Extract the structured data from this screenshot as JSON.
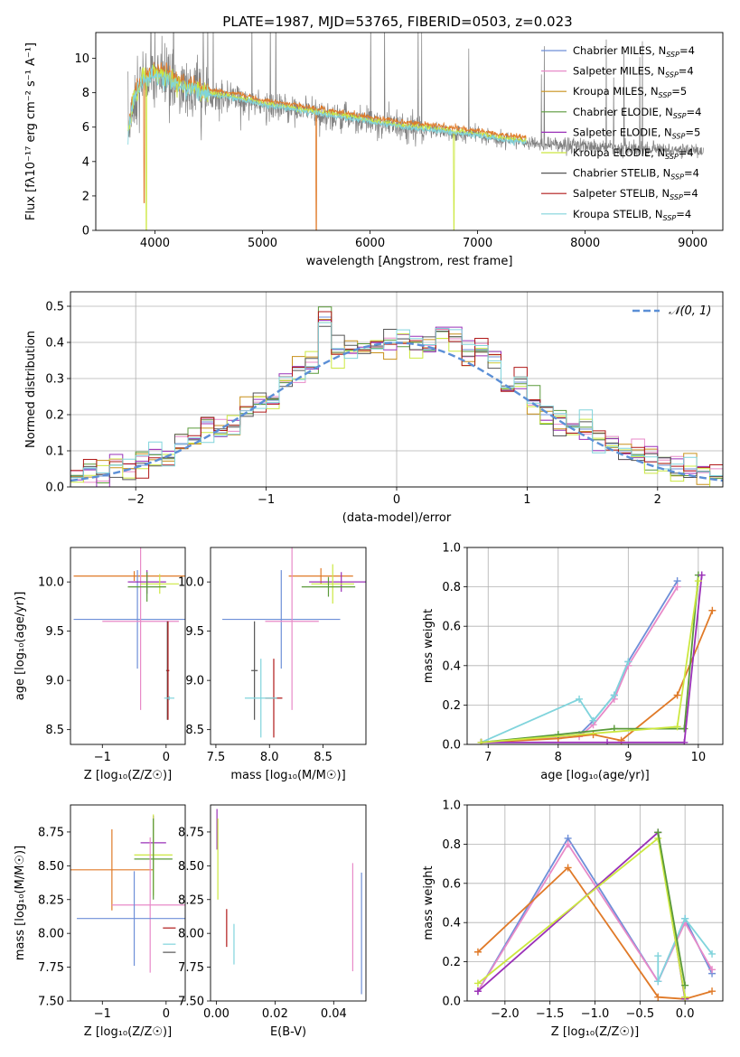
{
  "figure_title": "PLATE=1987, MJD=53765, FIBERID=0503, z=0.023",
  "colors": {
    "Chabrier MILES": "#6e8fd8",
    "Salpeter MILES": "#e88ac8",
    "Kroupa MILES": "#c8901a",
    "Chabrier ELODIE": "#5a9a3a",
    "Salpeter ELODIE": "#9a30b8",
    "Kroupa ELODIE": "#cce840",
    "Chabrier STELIB": "#555555",
    "Salpeter STELIB": "#b01818",
    "Kroupa STELIB": "#80d4dc",
    "orange": "#e07a28",
    "normal_curve": "#5b8fd6"
  },
  "chart_data": [
    {
      "type": "line",
      "title": "PLATE=1987, MJD=53765, FIBERID=0503, z=0.023",
      "xlabel": "wavelength [Angstrom, rest frame]",
      "ylabel": "Flux [fλ10⁻¹⁷ erg cm⁻² s⁻¹ A⁻¹]",
      "xlim": [
        3450,
        9280
      ],
      "ylim": [
        0,
        11.5
      ],
      "xticks": [
        4000,
        5000,
        6000,
        7000,
        8000,
        9000
      ],
      "yticks": [
        0,
        2,
        4,
        6,
        8,
        10
      ],
      "legend_position": "top-right",
      "legend": [
        {
          "name": "Chabrier MILES",
          "suffix": "=4"
        },
        {
          "name": "Salpeter MILES",
          "suffix": "=4"
        },
        {
          "name": "Kroupa MILES",
          "suffix": "=5"
        },
        {
          "name": "Chabrier ELODIE",
          "suffix": "=4"
        },
        {
          "name": "Salpeter ELODIE",
          "suffix": "=5"
        },
        {
          "name": "Kroupa ELODIE",
          "suffix": "=4"
        },
        {
          "name": "Chabrier STELIB",
          "suffix": "=4"
        },
        {
          "name": "Salpeter STELIB",
          "suffix": "=4"
        },
        {
          "name": "Kroupa STELIB",
          "suffix": "=4"
        }
      ],
      "spectrum_envelope": {
        "x": [
          3750,
          3800,
          3900,
          4000,
          4100,
          4200,
          4400,
          4600,
          4800,
          5000,
          5200,
          5500,
          5800,
          6000,
          6300,
          6600,
          7000,
          7300,
          7600,
          8000,
          8400,
          8800,
          9100
        ],
        "y": [
          5.5,
          7.5,
          8.8,
          9.0,
          8.9,
          8.4,
          8.0,
          7.8,
          7.6,
          7.3,
          7.1,
          6.8,
          6.5,
          6.3,
          6.0,
          5.8,
          5.5,
          5.2,
          5.0,
          4.9,
          4.8,
          4.7,
          4.6
        ]
      },
      "noisy_spectrum_x_range": [
        3750,
        9100
      ],
      "model_x_range": [
        3750,
        7450
      ]
    },
    {
      "type": "line",
      "xlabel": "(data-model)/error",
      "ylabel": "Normed distribution",
      "xlim": [
        -2.5,
        2.5
      ],
      "ylim": [
        0,
        0.54
      ],
      "xticks": [
        -2,
        -1,
        0,
        1,
        2
      ],
      "yticks": [
        0.0,
        0.1,
        0.2,
        0.3,
        0.4,
        0.5
      ],
      "legend": [
        {
          "name": "𝒩(0, 1)"
        }
      ],
      "legend_position": "top-right",
      "bin_width": 0.1,
      "reference_series": {
        "x": [
          -2.45,
          -2.35,
          -2.25,
          -2.15,
          -2.05,
          -1.95,
          -1.85,
          -1.75,
          -1.65,
          -1.55,
          -1.45,
          -1.35,
          -1.25,
          -1.15,
          -1.05,
          -0.95,
          -0.85,
          -0.75,
          -0.65,
          -0.55,
          -0.45,
          -0.35,
          -0.25,
          -0.15,
          -0.05,
          0.05,
          0.15,
          0.25,
          0.35,
          0.45,
          0.55,
          0.65,
          0.75,
          0.85,
          0.95,
          1.05,
          1.15,
          1.25,
          1.35,
          1.45,
          1.55,
          1.65,
          1.75,
          1.85,
          1.95,
          2.05,
          2.15,
          2.25,
          2.35,
          2.45
        ],
        "y": [
          0.03,
          0.05,
          0.03,
          0.06,
          0.05,
          0.06,
          0.09,
          0.08,
          0.12,
          0.13,
          0.18,
          0.15,
          0.17,
          0.22,
          0.23,
          0.24,
          0.29,
          0.33,
          0.33,
          0.47,
          0.38,
          0.37,
          0.38,
          0.4,
          0.4,
          0.41,
          0.4,
          0.38,
          0.43,
          0.41,
          0.38,
          0.38,
          0.36,
          0.27,
          0.29,
          0.24,
          0.2,
          0.19,
          0.17,
          0.16,
          0.13,
          0.12,
          0.1,
          0.09,
          0.07,
          0.06,
          0.05,
          0.05,
          0.04,
          0.03
        ]
      }
    },
    {
      "type": "scatter",
      "xlabel": "Z [log₁₀(Z/Z☉)]",
      "ylabel": "age  [log₁₀(age/yr)]",
      "xlim": [
        -1.5,
        0.3
      ],
      "ylim": [
        8.35,
        10.35
      ],
      "xticks": [
        -1,
        0
      ],
      "yticks": [
        8.5,
        9.0,
        9.5,
        10.0
      ],
      "errorbars": [
        {
          "model": "Kroupa MILES",
          "color": "orange",
          "x": -0.5,
          "xerr": 0.95,
          "y": 10.06,
          "yerr": 0.05
        },
        {
          "model": "Chabrier MILES",
          "color": "Chabrier MILES",
          "x": -0.45,
          "xerr": 1.0,
          "y": 9.62,
          "yerr": 0.5
        },
        {
          "model": "Salpeter MILES",
          "color": "Salpeter MILES",
          "x": -0.4,
          "xerr": 0.6,
          "y": 9.6,
          "yerr": 0.9
        },
        {
          "model": "Salpeter ELODIE",
          "color": "Salpeter ELODIE",
          "x": -0.3,
          "xerr": 0.3,
          "y": 10.0,
          "yerr": 0.12
        },
        {
          "model": "Kroupa ELODIE",
          "color": "Kroupa ELODIE",
          "x": -0.1,
          "xerr": 0.3,
          "y": 9.98,
          "yerr": 0.1
        },
        {
          "model": "Chabrier ELODIE",
          "color": "Chabrier ELODIE",
          "x": -0.3,
          "xerr": 0.3,
          "y": 9.95,
          "yerr": 0.15
        },
        {
          "model": "Chabrier STELIB",
          "color": "Chabrier STELIB",
          "x": 0.02,
          "xerr": 0.02,
          "y": 9.1,
          "yerr": 0.5
        },
        {
          "model": "Salpeter STELIB",
          "color": "Salpeter STELIB",
          "x": 0.03,
          "xerr": 0.02,
          "y": 9.1,
          "yerr": 0.5
        },
        {
          "model": "Kroupa STELIB",
          "color": "Kroupa STELIB",
          "x": 0.05,
          "xerr": 0.08,
          "y": 8.82,
          "yerr": 0.02
        }
      ]
    },
    {
      "type": "scatter",
      "xlabel": "mass [log₁₀(M/M☉)]",
      "xlim": [
        7.45,
        8.9
      ],
      "ylim": [
        8.35,
        10.35
      ],
      "xticks": [
        7.5,
        8.0,
        8.5
      ],
      "yticks": [
        8.5,
        9.0,
        9.5,
        10.0
      ],
      "errorbars": [
        {
          "color": "orange",
          "x": 8.48,
          "xerr": 0.3,
          "y": 10.06,
          "yerr": 0.08
        },
        {
          "color": "Salpeter ELODIE",
          "x": 8.67,
          "xerr": 0.3,
          "y": 10.0,
          "yerr": 0.1
        },
        {
          "color": "Kroupa ELODIE",
          "x": 8.59,
          "xerr": 0.2,
          "y": 9.98,
          "yerr": 0.2
        },
        {
          "color": "Chabrier ELODIE",
          "x": 8.55,
          "xerr": 0.25,
          "y": 9.95,
          "yerr": 0.1
        },
        {
          "color": "Chabrier MILES",
          "x": 8.11,
          "xerr": 0.55,
          "y": 9.62,
          "yerr": 0.5
        },
        {
          "color": "Salpeter MILES",
          "x": 8.21,
          "xerr": 0.25,
          "y": 9.6,
          "yerr": 0.9
        },
        {
          "color": "Chabrier STELIB",
          "x": 7.86,
          "xerr": 0.03,
          "y": 9.1,
          "yerr": 0.5
        },
        {
          "color": "Salpeter STELIB",
          "x": 8.04,
          "xerr": 0.08,
          "y": 8.82,
          "yerr": 0.4
        },
        {
          "color": "Kroupa STELIB",
          "x": 7.92,
          "xerr": 0.15,
          "y": 8.82,
          "yerr": 0.4
        }
      ]
    },
    {
      "type": "line",
      "xlabel": "age  [log₁₀(age/yr)]",
      "ylabel": "mass weight",
      "xlim": [
        6.7,
        10.35
      ],
      "ylim": [
        0,
        1.0
      ],
      "xticks": [
        7,
        8,
        9,
        10
      ],
      "yticks": [
        0.0,
        0.2,
        0.4,
        0.6,
        0.8,
        1.0
      ],
      "series": [
        {
          "color": "Chabrier MILES",
          "x": [
            6.9,
            8.3,
            8.5,
            8.8,
            9.0,
            9.7
          ],
          "y": [
            0.01,
            0.05,
            0.12,
            0.25,
            0.42,
            0.83
          ]
        },
        {
          "color": "Salpeter MILES",
          "x": [
            6.9,
            8.3,
            8.5,
            8.8,
            9.0,
            9.7
          ],
          "y": [
            0.01,
            0.04,
            0.1,
            0.23,
            0.4,
            0.8
          ]
        },
        {
          "color": "Kroupa STELIB",
          "x": [
            6.9,
            8.3,
            8.5,
            8.8,
            9.0
          ],
          "y": [
            0.01,
            0.23,
            0.12,
            0.25,
            0.42
          ]
        },
        {
          "color": "orange",
          "x": [
            6.9,
            8.0,
            8.5,
            8.9,
            9.7,
            10.2
          ],
          "y": [
            0.01,
            0.03,
            0.05,
            0.02,
            0.25,
            0.68
          ]
        },
        {
          "color": "Chabrier ELODIE",
          "x": [
            6.9,
            8.0,
            8.8,
            9.8,
            10.0
          ],
          "y": [
            0.01,
            0.05,
            0.08,
            0.08,
            0.86
          ]
        },
        {
          "color": "Salpeter ELODIE",
          "x": [
            6.9,
            8.7,
            9.8,
            10.05
          ],
          "y": [
            0.01,
            0.01,
            0.01,
            0.86
          ]
        },
        {
          "color": "Kroupa ELODIE",
          "x": [
            6.9,
            9.7,
            10.0
          ],
          "y": [
            0.01,
            0.09,
            0.83
          ]
        }
      ]
    },
    {
      "type": "scatter",
      "xlabel": "Z [log₁₀(Z/Z☉)]",
      "ylabel": "mass [log₁₀(M/M☉)]",
      "xlim": [
        -1.5,
        0.3
      ],
      "ylim": [
        7.5,
        8.95
      ],
      "xticks": [
        -1,
        0
      ],
      "yticks": [
        7.5,
        7.75,
        8.0,
        8.25,
        8.5,
        8.75
      ],
      "errorbars": [
        {
          "color": "orange",
          "x": -0.85,
          "xerr": 0.65,
          "y": 8.47,
          "yerr": 0.3
        },
        {
          "color": "Salpeter ELODIE",
          "x": -0.2,
          "xerr": 0.2,
          "y": 8.67,
          "yerr": 0.2
        },
        {
          "color": "Kroupa ELODIE",
          "x": -0.2,
          "xerr": 0.3,
          "y": 8.58,
          "yerr": 0.3
        },
        {
          "color": "Chabrier ELODIE",
          "x": -0.2,
          "xerr": 0.3,
          "y": 8.55,
          "yerr": 0.3
        },
        {
          "color": "Salpeter MILES",
          "x": -0.25,
          "xerr": 0.6,
          "y": 8.21,
          "yerr": 0.5
        },
        {
          "color": "Chabrier MILES",
          "x": -0.5,
          "xerr": 0.9,
          "y": 8.11,
          "yerr": 0.35
        },
        {
          "color": "Salpeter STELIB",
          "x": 0.05,
          "xerr": 0.1,
          "y": 8.04,
          "yerr": 0.0
        },
        {
          "color": "Kroupa STELIB",
          "x": 0.05,
          "xerr": 0.1,
          "y": 7.92,
          "yerr": 0.0
        },
        {
          "color": "Chabrier STELIB",
          "x": 0.05,
          "xerr": 0.1,
          "y": 7.86,
          "yerr": 0.0
        }
      ]
    },
    {
      "type": "scatter",
      "xlabel": "E(B-V)",
      "xlim": [
        -0.002,
        0.051
      ],
      "ylim": [
        7.5,
        8.95
      ],
      "xticks": [
        0.0,
        0.02,
        0.04
      ],
      "xtick_labels": [
        "0.00",
        "0.02",
        "0.04"
      ],
      "yticks": [
        7.5,
        7.75,
        8.0,
        8.25,
        8.5,
        8.75
      ],
      "errorbars": [
        {
          "color": "Salpeter ELODIE",
          "x": 0.0002,
          "y": 8.77,
          "yerr": 0.15
        },
        {
          "color": "Kroupa ELODIE",
          "x": 0.0005,
          "y": 8.55,
          "yerr": 0.3
        },
        {
          "color": "Salpeter STELIB",
          "x": 0.0035,
          "y": 8.04,
          "yerr": 0.14
        },
        {
          "color": "Kroupa STELIB",
          "x": 0.006,
          "y": 7.92,
          "yerr": 0.15
        },
        {
          "color": "Salpeter MILES",
          "x": 0.0465,
          "y": 8.12,
          "yerr": 0.4
        },
        {
          "color": "Chabrier MILES",
          "x": 0.0495,
          "y": 8.0,
          "yerr": 0.45
        }
      ]
    },
    {
      "type": "line",
      "xlabel": "Z [log₁₀(Z/Z☉)]",
      "ylabel": "mass weight",
      "xlim": [
        -2.42,
        0.42
      ],
      "ylim": [
        0,
        1.0
      ],
      "xticks": [
        -2.0,
        -1.5,
        -1.0,
        -0.5,
        0.0
      ],
      "xtick_labels": [
        "−2.0",
        "−1.5",
        "−1.0",
        "−0.5",
        "0.0"
      ],
      "yticks": [
        0.0,
        0.2,
        0.4,
        0.6,
        0.8,
        1.0
      ],
      "series": [
        {
          "color": "Chabrier MILES",
          "x": [
            -2.3,
            -1.3,
            -0.3,
            0.0,
            0.3
          ],
          "y": [
            0.05,
            0.83,
            0.1,
            0.42,
            0.14
          ]
        },
        {
          "color": "Salpeter MILES",
          "x": [
            -2.3,
            -1.3,
            -0.3,
            0.0,
            0.3
          ],
          "y": [
            0.05,
            0.8,
            0.1,
            0.4,
            0.16
          ]
        },
        {
          "color": "Kroupa STELIB",
          "x": [
            -0.3,
            -0.3,
            0.0,
            0.3
          ],
          "y": [
            0.23,
            0.1,
            0.42,
            0.24
          ]
        },
        {
          "color": "orange",
          "x": [
            -2.3,
            -1.3,
            -0.3,
            0.0,
            0.3
          ],
          "y": [
            0.25,
            0.68,
            0.02,
            0.01,
            0.05
          ]
        },
        {
          "color": "Salpeter ELODIE",
          "x": [
            -2.3,
            -0.3,
            0.0
          ],
          "y": [
            0.05,
            0.86,
            0.01
          ]
        },
        {
          "color": "Kroupa ELODIE",
          "x": [
            -2.3,
            -0.3,
            0.0
          ],
          "y": [
            0.09,
            0.83,
            0.02
          ]
        },
        {
          "color": "Chabrier ELODIE",
          "x": [
            -0.3,
            0.0
          ],
          "y": [
            0.86,
            0.08
          ]
        }
      ]
    }
  ]
}
